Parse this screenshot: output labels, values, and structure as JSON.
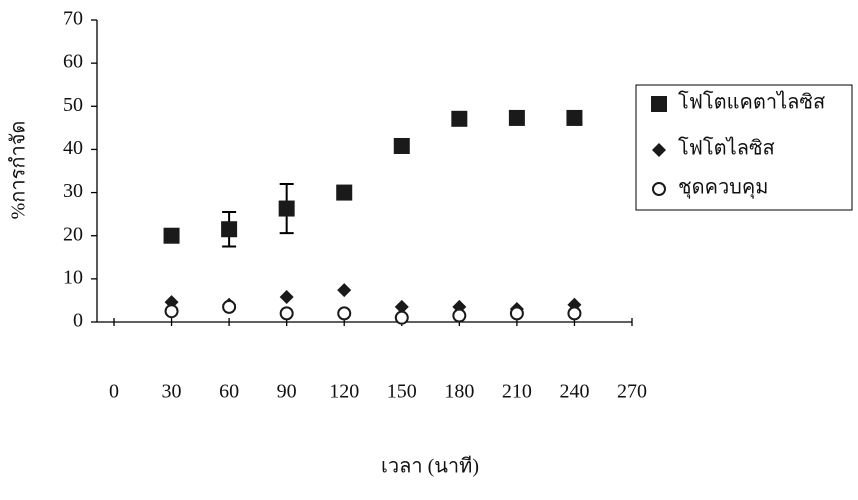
{
  "chart_data": {
    "type": "scatter",
    "x_label": "เวลา (นาที)",
    "y_label": "%การกำจัด",
    "x": [
      30,
      60,
      90,
      120,
      150,
      180,
      210,
      240
    ],
    "series": [
      {
        "name": "โฟโตแคตาไลซิส",
        "color": "#1a1a1a",
        "marker": "square",
        "values": [
          20,
          21.5,
          26.3,
          30,
          40.8,
          47.1,
          47.3,
          47.3
        ],
        "errors": [
          null,
          4,
          5.7,
          null,
          null,
          null,
          null,
          null
        ]
      },
      {
        "name": "โฟโตไลซิส",
        "color": "#1a1a1a",
        "marker": "diamond",
        "values": [
          4.6,
          4,
          5.8,
          7.4,
          3.5,
          3.5,
          3,
          4
        ]
      },
      {
        "name": "ชุดควบคุม",
        "color": "#1a1a1a",
        "marker": "circle",
        "values": [
          2.5,
          3.5,
          2,
          2,
          1,
          1.5,
          2,
          2
        ]
      }
    ],
    "xlim": [
      0,
      270
    ],
    "xticks": [
      0,
      30,
      60,
      90,
      120,
      150,
      180,
      210,
      240,
      270
    ],
    "ylim": [
      0,
      70
    ],
    "yticks": [
      0,
      10,
      20,
      30,
      40,
      50,
      60,
      70
    ],
    "legend": "right"
  }
}
